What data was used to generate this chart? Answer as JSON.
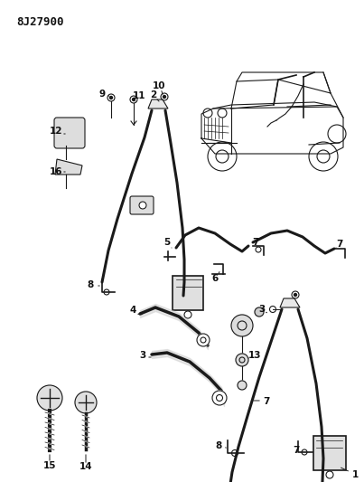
{
  "title": "8J27900",
  "bg_color": "#ffffff",
  "line_color": "#1a1a1a",
  "fig_width": 4.03,
  "fig_height": 5.33,
  "dpi": 100,
  "label_fs": 7,
  "label_bold_fs": 7.5
}
